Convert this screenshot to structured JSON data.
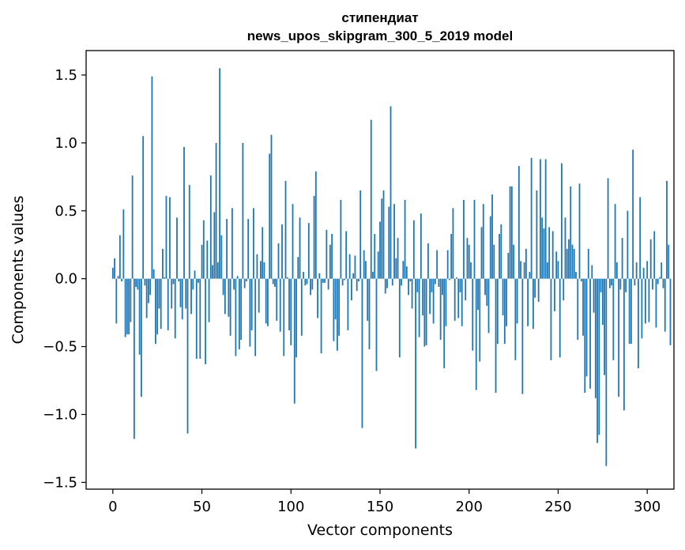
{
  "chart_data": {
    "type": "bar",
    "title_line1": "стипендиат",
    "title_line2": "news_upos_skipgram_300_5_2019 model",
    "xlabel": "Vector components",
    "ylabel": "Components values",
    "xlim": [
      -15,
      315
    ],
    "ylim": [
      -1.55,
      1.68
    ],
    "xticks": [
      0,
      50,
      100,
      150,
      200,
      250,
      300
    ],
    "yticks": [
      -1.5,
      -1.0,
      -0.5,
      0.0,
      0.5,
      1.0,
      1.5
    ],
    "xtick_labels": [
      "0",
      "50",
      "100",
      "150",
      "200",
      "250",
      "300"
    ],
    "ytick_labels": [
      "−1.5",
      "−1.0",
      "−0.5",
      "0.0",
      "0.5",
      "1.0",
      "1.5"
    ],
    "bar_color": "#1f77b4",
    "values": [
      0.08,
      0.15,
      -0.33,
      0.02,
      0.32,
      -0.02,
      0.51,
      -0.43,
      -0.41,
      -0.41,
      -0.32,
      0.76,
      -1.18,
      -0.06,
      -0.08,
      -0.56,
      -0.87,
      1.05,
      -0.05,
      -0.29,
      -0.18,
      -0.12,
      1.49,
      0.07,
      -0.48,
      -0.41,
      -0.22,
      -0.37,
      0.22,
      0.01,
      0.61,
      -0.38,
      0.6,
      -0.22,
      -0.04,
      -0.44,
      0.45,
      -0.02,
      -0.21,
      -0.3,
      0.97,
      -0.22,
      -1.14,
      0.69,
      -0.26,
      -0.08,
      0.06,
      -0.59,
      -0.03,
      -0.59,
      0.25,
      0.43,
      -0.63,
      0.28,
      -0.32,
      0.76,
      0.1,
      0.49,
      1.0,
      0.12,
      1.55,
      0.32,
      -0.12,
      -0.26,
      0.44,
      -0.28,
      -0.42,
      0.52,
      -0.08,
      -0.57,
      0.02,
      -0.52,
      -0.45,
      1.0,
      -0.07,
      -0.02,
      0.44,
      -0.5,
      -0.38,
      0.52,
      -0.57,
      0.18,
      -0.25,
      0.13,
      0.38,
      0.12,
      -0.33,
      -0.35,
      0.92,
      1.06,
      -0.04,
      -0.06,
      -0.31,
      0.26,
      -0.39,
      0.4,
      -0.57,
      0.72,
      0.01,
      -0.38,
      -0.49,
      0.55,
      -0.92,
      -0.58,
      0.16,
      0.45,
      -0.42,
      0.05,
      -0.05,
      -0.04,
      0.41,
      -0.12,
      -0.08,
      0.61,
      0.79,
      -0.29,
      0.04,
      -0.55,
      -0.03,
      -0.03,
      0.36,
      -0.08,
      0.25,
      0.33,
      -0.46,
      -0.3,
      -0.53,
      -0.42,
      0.58,
      -0.05,
      -0.01,
      0.35,
      -0.38,
      0.18,
      -0.16,
      0.04,
      0.17,
      -0.09,
      -0.02,
      0.65,
      -1.1,
      0.21,
      0.13,
      -0.31,
      -0.52,
      1.17,
      0.05,
      0.33,
      -0.68,
      0.2,
      0.42,
      0.59,
      0.65,
      -0.11,
      -0.07,
      0.53,
      1.27,
      -0.05,
      0.55,
      0.15,
      0.3,
      -0.58,
      -0.05,
      0.13,
      0.58,
      0.09,
      -0.12,
      -0.02,
      -0.22,
      0.43,
      -1.25,
      -0.1,
      -0.43,
      0.48,
      -0.27,
      -0.5,
      -0.49,
      0.26,
      -0.26,
      -0.1,
      -0.33,
      -0.04,
      0.21,
      -0.06,
      -0.45,
      -0.12,
      -0.66,
      -0.35,
      0.21,
      -0.01,
      0.33,
      0.52,
      -0.31,
      0.01,
      -0.29,
      -0.1,
      -0.35,
      0.58,
      -0.16,
      0.3,
      0.25,
      0.12,
      -0.53,
      0.58,
      -0.82,
      -0.23,
      -0.61,
      0.38,
      0.55,
      -0.12,
      -0.2,
      -0.4,
      0.46,
      0.62,
      0.25,
      -0.84,
      -0.48,
      0.33,
      0.4,
      -0.27,
      -0.48,
      -0.35,
      0.19,
      0.68,
      0.68,
      0.25,
      -0.6,
      -0.33,
      0.83,
      0.13,
      -0.85,
      0.12,
      0.22,
      -0.35,
      0.05,
      0.89,
      -0.37,
      -0.14,
      0.65,
      -0.17,
      0.88,
      0.45,
      0.37,
      0.88,
      0.12,
      0.38,
      -0.6,
      0.35,
      -0.24,
      0.2,
      0.13,
      -0.58,
      0.85,
      -0.16,
      0.45,
      0.22,
      0.29,
      0.68,
      0.25,
      0.22,
      0.05,
      -0.45,
      0.7,
      -0.02,
      -0.42,
      -0.84,
      -0.72,
      0.22,
      -0.81,
      0.1,
      -0.25,
      -0.88,
      -1.21,
      -1.15,
      -0.1,
      -0.34,
      -0.71,
      -1.38,
      0.74,
      -0.07,
      -0.05,
      -0.6,
      0.55,
      0.12,
      -0.87,
      -0.08,
      0.3,
      -0.97,
      -0.1,
      0.5,
      -0.48,
      -0.48,
      0.95,
      -0.05,
      0.12,
      -0.66,
      0.6,
      -0.44,
      0.08,
      -0.33,
      0.13,
      -0.32,
      0.29,
      -0.08,
      0.35,
      -0.36,
      -0.04,
      0.01,
      0.12,
      -0.07,
      -0.39,
      0.72,
      0.25,
      -0.49
    ]
  }
}
